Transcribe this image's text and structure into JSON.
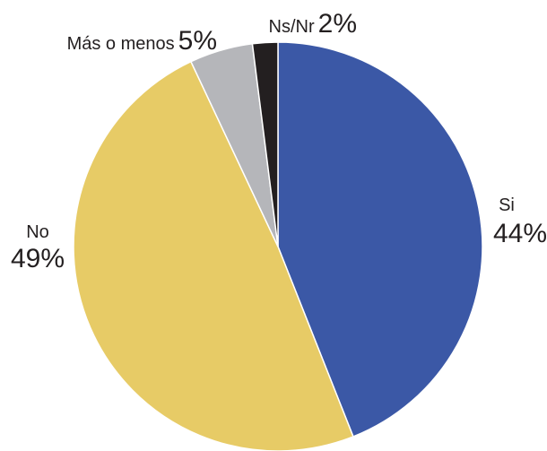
{
  "chart_data": {
    "type": "pie",
    "categories": [
      "Si",
      "No",
      "Más o menos",
      "Ns/Nr"
    ],
    "values": [
      44,
      49,
      5,
      2
    ],
    "value_labels": [
      "44%",
      "49%",
      "5%",
      "2%"
    ],
    "colors": [
      "#3b58a6",
      "#e7cb66",
      "#b5b6ba",
      "#231f20"
    ]
  }
}
